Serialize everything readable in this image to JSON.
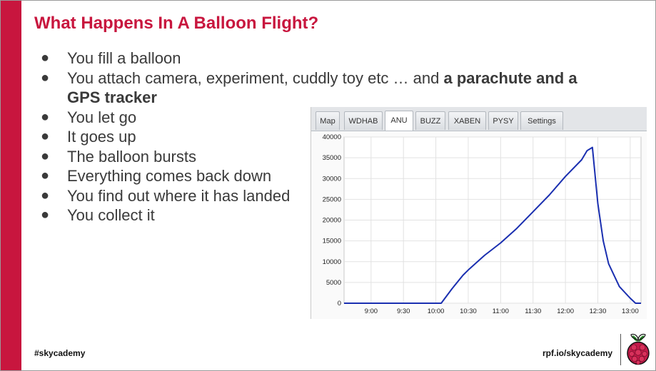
{
  "slide": {
    "title": "What Happens In A Balloon Flight?",
    "accent_color": "#c8163e",
    "bullets": [
      {
        "text": "You fill a balloon"
      },
      {
        "text": "You attach camera, experiment, cuddly toy etc … and ",
        "bold": "a parachute and a GPS tracker"
      },
      {
        "text": "You let go"
      },
      {
        "text": "It goes up"
      },
      {
        "text": "The balloon bursts"
      },
      {
        "text": "Everything comes back down"
      },
      {
        "text": "You find out where it has landed"
      },
      {
        "text": "You collect it"
      }
    ],
    "footer": {
      "hashtag": "#skycademy",
      "url": "rpf.io/skycademy",
      "logo_icon": "raspberry-pi-logo-icon"
    }
  },
  "tracker_panel": {
    "tabs": [
      {
        "label": "Map",
        "active": false
      },
      {
        "label": "WDHAB",
        "active": false
      },
      {
        "label": "ANU",
        "active": true
      },
      {
        "label": "BUZZ",
        "active": false
      },
      {
        "label": "XABEN",
        "active": false
      },
      {
        "label": "PYSY",
        "active": false
      },
      {
        "label": "Settings",
        "active": false
      }
    ]
  },
  "chart_data": {
    "type": "line",
    "title": "",
    "xlabel": "",
    "ylabel": "",
    "grid": true,
    "line_color": "#1a2fb0",
    "x_ticks": [
      "9:00",
      "9:30",
      "10:00",
      "10:30",
      "11:00",
      "11:30",
      "12:00",
      "12:30",
      "13:00"
    ],
    "y_ticks": [
      0,
      5000,
      10000,
      15000,
      20000,
      25000,
      30000,
      35000,
      40000
    ],
    "xlim": [
      "8:35",
      "13:10"
    ],
    "ylim": [
      0,
      40000
    ],
    "series": [
      {
        "x": [
          "8:35",
          "9:00",
          "9:30",
          "10:00",
          "10:05",
          "10:15",
          "10:25",
          "10:30",
          "10:45",
          "11:00",
          "11:15",
          "11:30",
          "11:45",
          "12:00",
          "12:15",
          "12:20",
          "12:25",
          "12:30",
          "12:35",
          "12:40",
          "12:50",
          "13:00",
          "13:05",
          "13:10"
        ],
        "y": [
          0,
          0,
          0,
          0,
          0,
          3500,
          6700,
          8000,
          11500,
          14500,
          18000,
          22000,
          26000,
          30500,
          34500,
          36700,
          37500,
          24000,
          15000,
          9500,
          4000,
          1200,
          0,
          0
        ]
      }
    ]
  }
}
